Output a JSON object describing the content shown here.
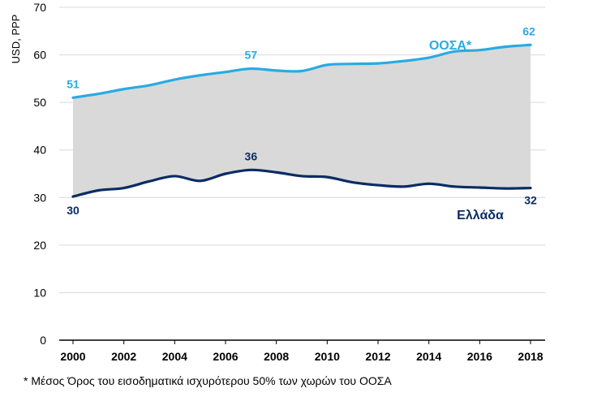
{
  "chart_data": {
    "type": "area",
    "ylabel": "USD, PPP",
    "ylim": [
      0,
      70
    ],
    "yticks": [
      0,
      10,
      20,
      30,
      40,
      50,
      60,
      70
    ],
    "xlim": [
      2000,
      2018
    ],
    "xticks": [
      2000,
      2002,
      2004,
      2006,
      2008,
      2010,
      2012,
      2014,
      2016,
      2018
    ],
    "x": [
      2000,
      2001,
      2002,
      2003,
      2004,
      2005,
      2006,
      2007,
      2008,
      2009,
      2010,
      2011,
      2012,
      2013,
      2014,
      2015,
      2016,
      2017,
      2018
    ],
    "series": [
      {
        "name": "ΟΟΣΑ*",
        "color": "#29abe2",
        "values": [
          51.0,
          51.8,
          52.8,
          53.6,
          54.8,
          55.7,
          56.4,
          57.1,
          56.7,
          56.6,
          57.9,
          58.1,
          58.2,
          58.7,
          59.4,
          60.7,
          61.0,
          61.7,
          62.1
        ],
        "labels": [
          {
            "x": 2000,
            "text": "51"
          },
          {
            "x": 2007,
            "text": "57"
          },
          {
            "x": 2018,
            "text": "62"
          }
        ]
      },
      {
        "name": "Ελλάδα",
        "color": "#0b2c63",
        "values": [
          30.2,
          31.5,
          32.0,
          33.4,
          34.5,
          33.5,
          35.0,
          35.8,
          35.3,
          34.5,
          34.3,
          33.2,
          32.6,
          32.3,
          32.9,
          32.3,
          32.1,
          31.9,
          32.0
        ],
        "labels": [
          {
            "x": 2000,
            "text": "30"
          },
          {
            "x": 2007,
            "text": "36"
          },
          {
            "x": 2018,
            "text": "32"
          }
        ]
      }
    ],
    "fill_between": {
      "color": "#d9d9d9"
    },
    "grid": "horizontal",
    "legend": "inline-labels"
  },
  "footnote": "* Μέσος Όρος του εισοδηματικά ισχυρότερου 50% των χωρών του ΟΟΣΑ"
}
